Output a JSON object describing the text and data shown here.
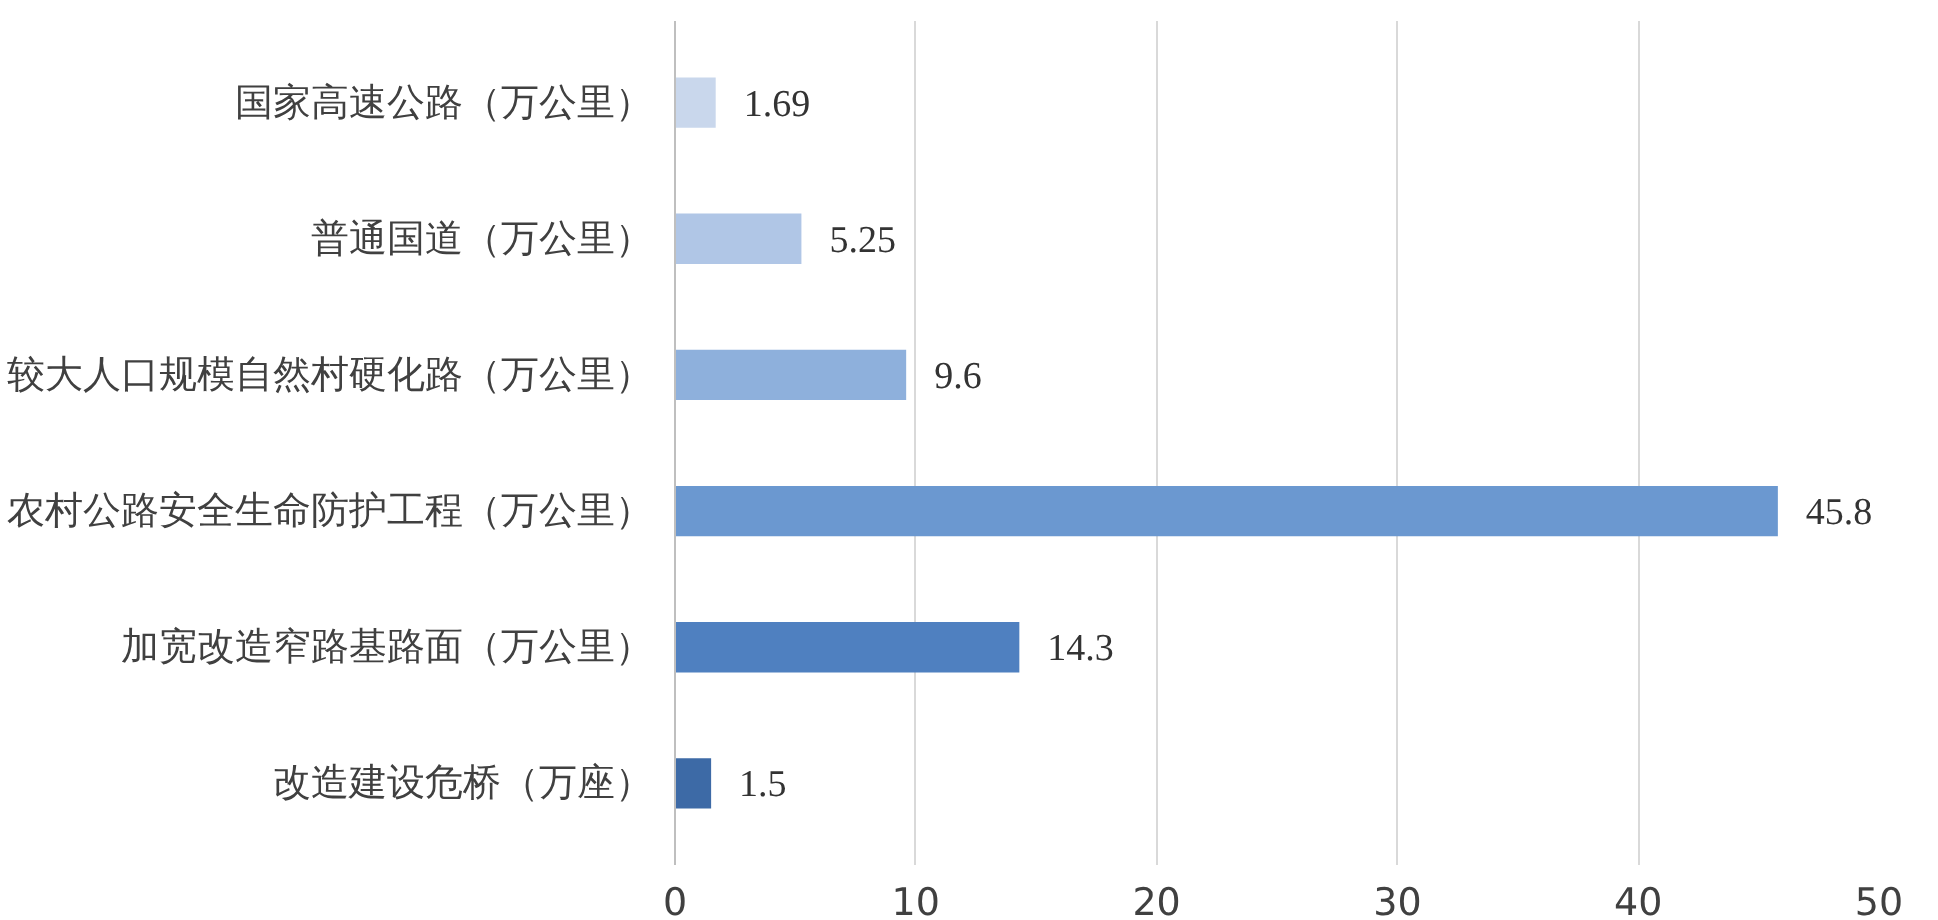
{
  "chart_data": {
    "type": "bar",
    "orientation": "horizontal",
    "categories": [
      "国家高速公路（万公里）",
      "普通国道（万公里）",
      "较大人口规模自然村硬化路（万公里）",
      "农村公路安全生命防护工程（万公里）",
      "加宽改造窄路基路面（万公里）",
      "改造建设危桥（万座）"
    ],
    "values": [
      1.69,
      5.25,
      9.6,
      45.8,
      14.3,
      1.5
    ],
    "colors": [
      "#c9d7ec",
      "#b0c6e6",
      "#8eb0dc",
      "#6b98d0",
      "#4f80c0",
      "#3d6aa6"
    ],
    "xlim": [
      0,
      50
    ],
    "xticks": [
      0,
      10,
      20,
      30,
      40,
      50
    ],
    "grid": "x",
    "data_labels": true
  }
}
